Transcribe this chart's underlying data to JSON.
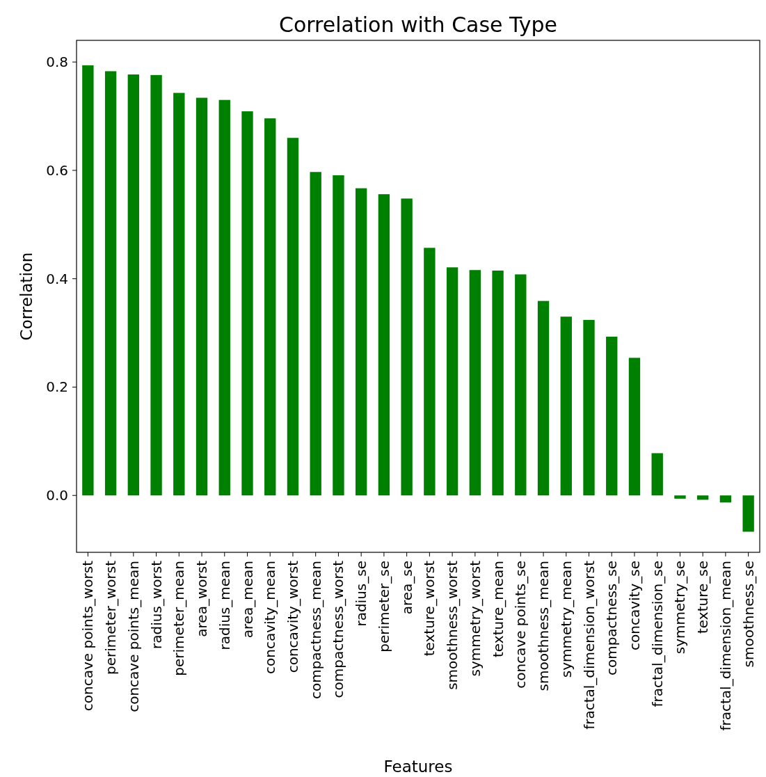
{
  "chart_data": {
    "type": "bar",
    "title": "Correlation with Case Type",
    "xlabel": "Features",
    "ylabel": "Correlation",
    "categories": [
      "concave points_worst",
      "perimeter_worst",
      "concave points_mean",
      "radius_worst",
      "perimeter_mean",
      "area_worst",
      "radius_mean",
      "area_mean",
      "concavity_mean",
      "concavity_worst",
      "compactness_mean",
      "compactness_worst",
      "radius_se",
      "perimeter_se",
      "area_se",
      "texture_worst",
      "smoothness_worst",
      "symmetry_worst",
      "texture_mean",
      "concave points_se",
      "smoothness_mean",
      "symmetry_mean",
      "fractal_dimension_worst",
      "compactness_se",
      "concavity_se",
      "fractal_dimension_se",
      "symmetry_se",
      "texture_se",
      "fractal_dimension_mean",
      "smoothness_se"
    ],
    "values": [
      0.794,
      0.783,
      0.777,
      0.776,
      0.743,
      0.734,
      0.73,
      0.709,
      0.696,
      0.66,
      0.597,
      0.591,
      0.567,
      0.556,
      0.548,
      0.457,
      0.421,
      0.416,
      0.415,
      0.408,
      0.359,
      0.33,
      0.324,
      0.293,
      0.254,
      0.078,
      -0.006,
      -0.008,
      -0.013,
      -0.067
    ],
    "color": "#008000",
    "ylim": [
      -0.105,
      0.84
    ],
    "yticks": [
      {
        "value": 0,
        "label": "0.0"
      },
      0.2,
      0.4,
      0.6,
      0.8
    ],
    "grid": false
  }
}
